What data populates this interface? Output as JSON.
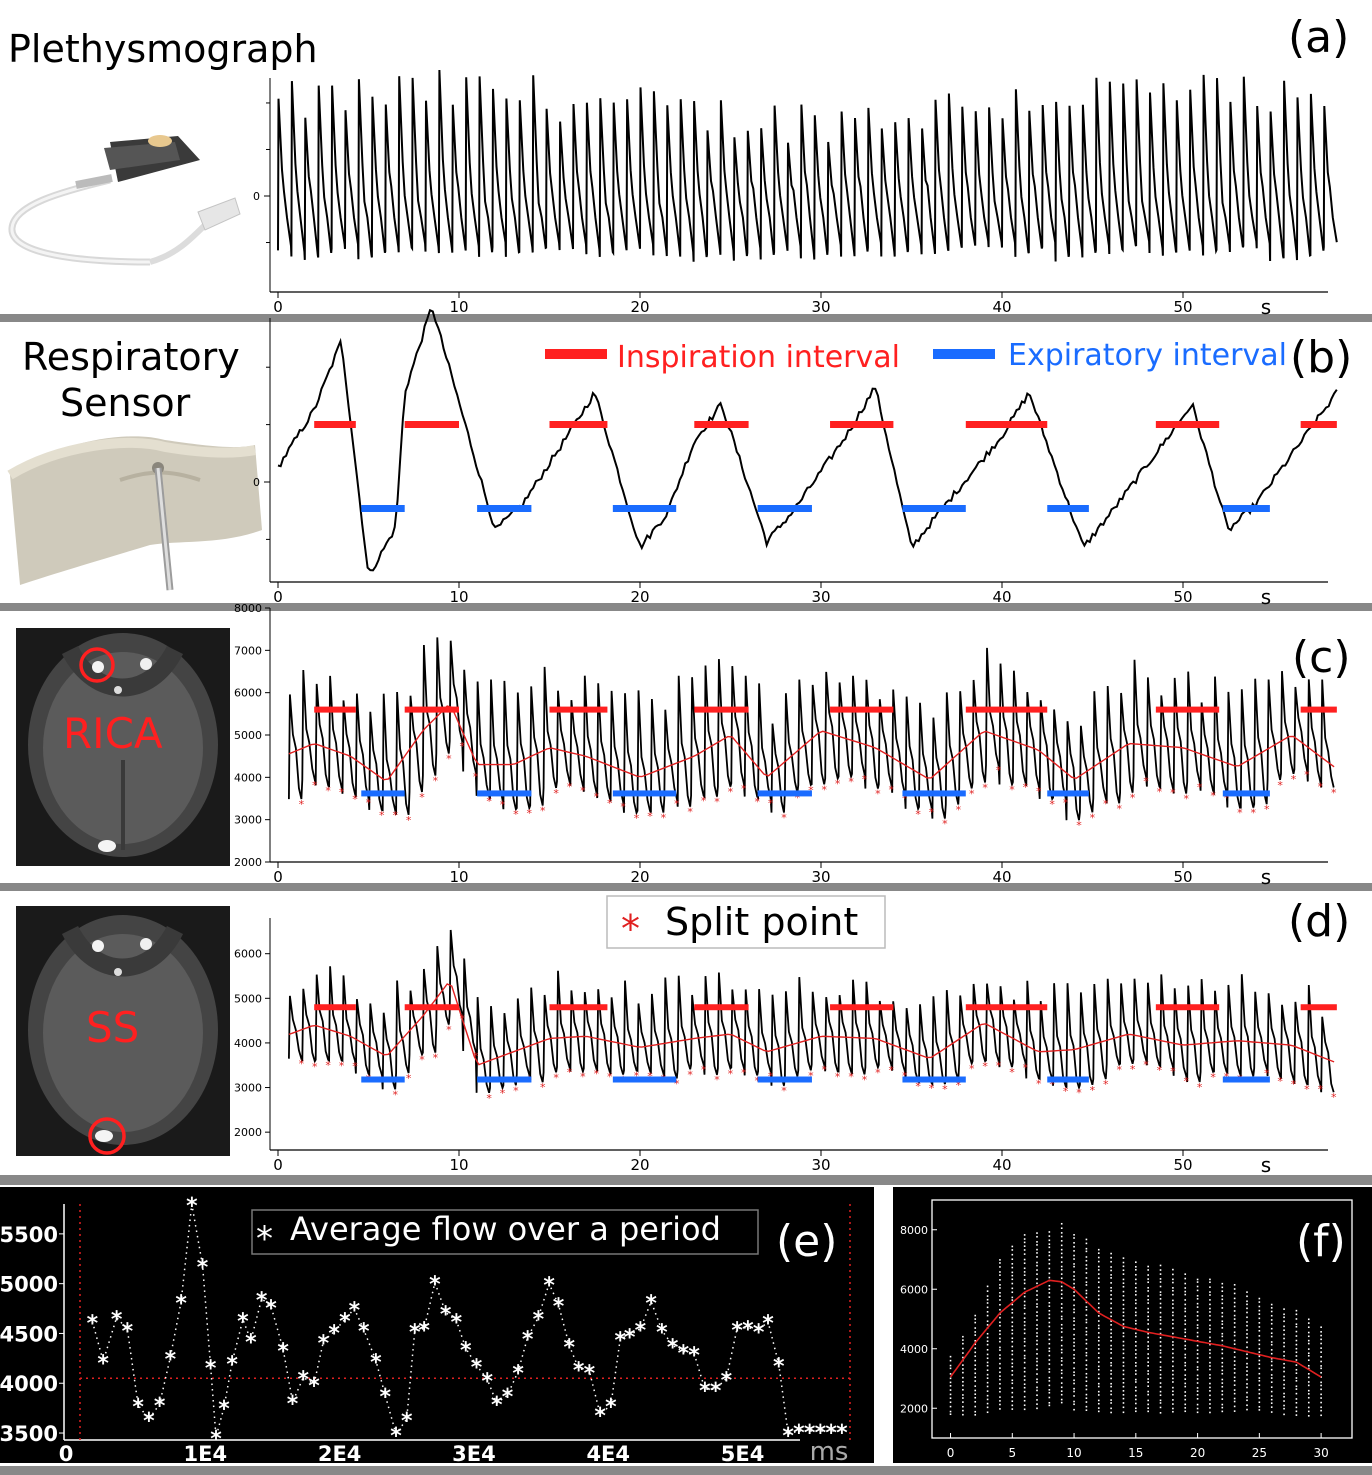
{
  "colors": {
    "inspiration": "#ff2020",
    "expiratory": "#1a6cff",
    "trace": "#000000",
    "fit": "#e02020",
    "separator": "#888888",
    "dark_bg": "#000000"
  },
  "icons": {
    "a": "pulse-oximeter-sensor-icon",
    "b": "respiratory-belt-sensor-icon",
    "c": "mri-slice-rica-icon",
    "d": "mri-slice-ss-icon"
  },
  "chart_data": [
    {
      "id": "a",
      "type": "line",
      "panel_label": "(a)",
      "title": "Plethysmograph",
      "xlabel": "s",
      "xlim": [
        0,
        58.5
      ],
      "xticks": [
        0,
        10,
        20,
        30,
        40,
        50
      ],
      "ytick_labels": [
        "0"
      ],
      "ylim": [
        -1.8,
        2.8
      ],
      "beats_per_s": 1.35
    },
    {
      "id": "b",
      "type": "line",
      "panel_label": "(b)",
      "title_lines": [
        "Respiratory",
        "Sensor"
      ],
      "xlabel": "s",
      "xlim": [
        0,
        58.5
      ],
      "xticks": [
        0,
        10,
        20,
        30,
        40,
        50
      ],
      "ytick_labels": [
        "0"
      ],
      "ylim": [
        -1.8,
        2.8
      ],
      "breath_peaks_s": [
        3.5,
        8.5,
        17.5,
        24.5,
        33,
        41.5,
        50.5
      ],
      "breath_troughs_s": [
        5,
        12,
        20,
        27,
        35,
        44.5,
        52.5
      ],
      "legend": [
        "Inspiration interval",
        "Expiratory interval"
      ],
      "inspiration_intervals": [
        [
          2,
          4.3
        ],
        [
          7,
          10
        ],
        [
          15,
          18.2
        ],
        [
          23,
          26
        ],
        [
          30.5,
          34
        ],
        [
          38,
          42.5
        ],
        [
          48.5,
          52
        ],
        [
          56.5,
          58.5
        ]
      ],
      "expiratory_intervals": [
        [
          4.6,
          7
        ],
        [
          11,
          14
        ],
        [
          18.5,
          22
        ],
        [
          26.5,
          29.5
        ],
        [
          34.5,
          38
        ],
        [
          42.5,
          44.8
        ],
        [
          52.2,
          54.8
        ]
      ]
    },
    {
      "id": "c",
      "type": "line",
      "panel_label": "(c)",
      "image_label": "RICA",
      "xlabel": "s",
      "xlim": [
        0,
        58.5
      ],
      "xticks": [
        0,
        10,
        20,
        30,
        40,
        50
      ],
      "yticks": [
        2000,
        3000,
        4000,
        5000,
        6000,
        7000,
        8000
      ],
      "ylim": [
        2000,
        8000
      ],
      "mean_curve_s": [
        0,
        2,
        4,
        6,
        8,
        9.5,
        11,
        13,
        15,
        17,
        20,
        23,
        25,
        27,
        30,
        33,
        36,
        39,
        42,
        44,
        47,
        50,
        53,
        56,
        58.5
      ],
      "mean_curve_y": [
        4450,
        4800,
        4500,
        3900,
        5100,
        5750,
        4300,
        4300,
        4700,
        4500,
        4000,
        4500,
        5000,
        4000,
        5100,
        4700,
        3950,
        5100,
        4650,
        3950,
        4800,
        4700,
        4250,
        5000,
        4200
      ],
      "inspiration_intervals": [
        [
          2,
          4.3
        ],
        [
          7,
          10
        ],
        [
          15,
          18.2
        ],
        [
          23,
          26
        ],
        [
          30.5,
          34
        ],
        [
          38,
          42.5
        ],
        [
          48.5,
          52
        ],
        [
          56.5,
          58.5
        ]
      ],
      "expiratory_intervals": [
        [
          4.6,
          7
        ],
        [
          11,
          14
        ],
        [
          18.5,
          22
        ],
        [
          26.5,
          29.5
        ],
        [
          34.5,
          38
        ],
        [
          42.5,
          44.8
        ],
        [
          52.2,
          54.8
        ]
      ],
      "inspiration_level": 5600,
      "expiratory_level": 3620
    },
    {
      "id": "d",
      "type": "line",
      "panel_label": "(d)",
      "image_label": "SS",
      "legend": [
        "Split point"
      ],
      "xlabel": "s",
      "xlim": [
        0,
        58.5
      ],
      "xticks": [
        0,
        10,
        20,
        30,
        40,
        50
      ],
      "yticks": [
        2000,
        3000,
        4000,
        5000,
        6000
      ],
      "ylim": [
        1600,
        6800
      ],
      "mean_curve_s": [
        0,
        2,
        4,
        6,
        8,
        9.5,
        11,
        13,
        15,
        17,
        20,
        23,
        25,
        27,
        30,
        33,
        36,
        39,
        42,
        44,
        47,
        50,
        53,
        56,
        58.5
      ],
      "mean_curve_y": [
        4100,
        4400,
        4150,
        3700,
        4600,
        5400,
        3500,
        3800,
        4100,
        4150,
        3900,
        4100,
        4200,
        3800,
        4150,
        4100,
        3650,
        4450,
        3800,
        3850,
        4200,
        3950,
        4050,
        3950,
        3550
      ],
      "inspiration_intervals": [
        [
          2,
          4.3
        ],
        [
          7,
          10
        ],
        [
          15,
          18.2
        ],
        [
          23,
          26
        ],
        [
          30.5,
          34
        ],
        [
          38,
          42.5
        ],
        [
          48.5,
          52
        ],
        [
          56.5,
          58.5
        ]
      ],
      "expiratory_intervals": [
        [
          4.6,
          7
        ],
        [
          11,
          14
        ],
        [
          18.5,
          22
        ],
        [
          26.5,
          29.5
        ],
        [
          34.5,
          38
        ],
        [
          42.5,
          44.8
        ],
        [
          52.2,
          54.8
        ]
      ],
      "inspiration_level": 4800,
      "expiratory_level": 3180
    },
    {
      "id": "e",
      "type": "scatter",
      "panel_label": "(e)",
      "legend": [
        "Average flow over a period"
      ],
      "xlabel": "ms",
      "xlim": [
        0,
        58000
      ],
      "xtick_labels": [
        "0",
        "1E4",
        "2E4",
        "3E4",
        "4E4",
        "5E4"
      ],
      "xticks": [
        0,
        10000,
        20000,
        30000,
        40000,
        50000
      ],
      "yticks": [
        3500,
        4000,
        4500,
        5000,
        5500
      ],
      "ylim": [
        3430,
        5800
      ],
      "reference_line": 4050,
      "x": [
        1000,
        1800,
        2800,
        3600,
        4400,
        5200,
        6000,
        6800,
        7600,
        8400,
        9200,
        9800,
        10200,
        10800,
        11400,
        12200,
        12800,
        13600,
        14300,
        15200,
        15900,
        16700,
        17500,
        18200,
        19000,
        19800,
        20500,
        21200,
        22100,
        22800,
        23600,
        24400,
        25000,
        25700,
        26500,
        27300,
        28100,
        28800,
        29600,
        30400,
        31100,
        31900,
        32700,
        33400,
        34200,
        35000,
        35700,
        36500,
        37200,
        38000,
        38800,
        39600,
        40300,
        41000,
        41800,
        42600,
        43400,
        44200,
        45000,
        45800,
        46600,
        47400,
        48200,
        49000,
        49800,
        50600,
        51300,
        52100,
        52800,
        53600,
        54400,
        55200,
        56000,
        56800,
        57600
      ],
      "y": [
        4620,
        4220,
        4660,
        4540,
        3780,
        3640,
        3790,
        4260,
        4820,
        5800,
        5180,
        4170,
        3460,
        3760,
        4210,
        4640,
        4430,
        4850,
        4770,
        4340,
        3810,
        4060,
        3990,
        4420,
        4520,
        4640,
        4750,
        4540,
        4230,
        3880,
        3490,
        3640,
        4530,
        4550,
        5010,
        4710,
        4630,
        4350,
        4180,
        4040,
        3800,
        3880,
        4120,
        4460,
        4660,
        5000,
        4790,
        4380,
        4150,
        4120,
        3690,
        3780,
        4450,
        4480,
        4550,
        4820,
        4530,
        4380,
        4320,
        4300,
        3940,
        3940,
        4050,
        4550,
        4560,
        4530,
        4620,
        4190,
        3490,
        3520,
        3520,
        3520,
        3520,
        3520,
        3520
      ]
    },
    {
      "id": "f",
      "type": "scatter",
      "panel_label": "(f)",
      "xticks": [
        0,
        5,
        10,
        15,
        20,
        25,
        30
      ],
      "xlim": [
        -1.5,
        32.5
      ],
      "yticks": [
        2000,
        4000,
        6000,
        8000
      ],
      "ylim": [
        1000,
        9000
      ],
      "fit_x": [
        0,
        2,
        4,
        6,
        8,
        9,
        10,
        12,
        14,
        16,
        18,
        20,
        22,
        24,
        26,
        28,
        30
      ],
      "fit_y": [
        3050,
        4200,
        5200,
        5900,
        6300,
        6250,
        6000,
        5200,
        4750,
        4550,
        4400,
        4250,
        4100,
        3900,
        3700,
        3550,
        3050
      ],
      "spread_top": [
        3800,
        5200,
        7100,
        7900,
        8100,
        8300,
        8000,
        7400,
        7100,
        6900,
        6700,
        6500,
        6300,
        6000,
        5600,
        5300,
        4800
      ],
      "spread_bottom": [
        1800,
        1800,
        2000,
        2000,
        2100,
        2200,
        2000,
        1900,
        1900,
        1900,
        1900,
        1900,
        1900,
        2000,
        1900,
        1800,
        1800
      ]
    }
  ]
}
